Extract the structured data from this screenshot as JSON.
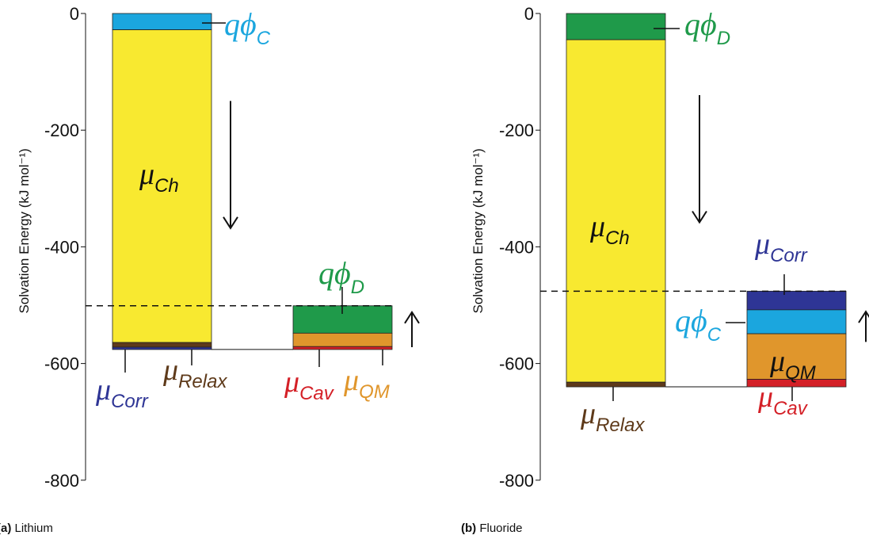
{
  "colors": {
    "chem": "#f8e930",
    "qphi_c": "#1ba6de",
    "qphi_d": "#1f9a4a",
    "relax": "#5e3a1a",
    "corr": "#2e3595",
    "cav": "#d42027",
    "qm": "#e0962c"
  },
  "chart_data": [
    {
      "type": "bar",
      "ylabel": "Solvation Energy (kJ mol⁻¹)",
      "ylim": [
        -800,
        0
      ],
      "yticks": [
        "0",
        "-200",
        "-400",
        "-600",
        "-800"
      ],
      "ytick_values": [
        0,
        -200,
        -400,
        -600,
        -800
      ],
      "caption_tag": "(a)",
      "caption_text": "Lithium",
      "bars": [
        {
          "name": "left",
          "segments": [
            {
              "key": "qphi_c",
              "from": 0,
              "to": -28
            },
            {
              "key": "chem",
              "from": -28,
              "to": -564
            },
            {
              "key": "relax",
              "from": -564,
              "to": -572
            },
            {
              "key": "corr",
              "from": -572,
              "to": -576
            }
          ]
        },
        {
          "name": "right",
          "segments": [
            {
              "key": "qphi_d",
              "from": -501,
              "to": -548
            },
            {
              "key": "qm",
              "from": -548,
              "to": -571
            },
            {
              "key": "cav",
              "from": -571,
              "to": -576
            }
          ]
        }
      ],
      "dashed_level": -501,
      "arrow_down": {
        "from": -150,
        "to": -368
      },
      "arrow_up": {
        "from": -572,
        "to": -512
      },
      "labels": [
        {
          "kind": "qphi",
          "sym": "qϕ",
          "sub": "C",
          "key": "qphi_c"
        },
        {
          "kind": "mu",
          "sym": "μ",
          "sub": "Ch",
          "key": "ink"
        },
        {
          "kind": "qphi",
          "sym": "qϕ",
          "sub": "D",
          "key": "qphi_d"
        },
        {
          "kind": "mu",
          "sym": "μ",
          "sub": "Corr",
          "key": "corr"
        },
        {
          "kind": "mu",
          "sym": "μ",
          "sub": "Relax",
          "key": "relax"
        },
        {
          "kind": "mu",
          "sym": "μ",
          "sub": "Cav",
          "key": "cav"
        },
        {
          "kind": "mu",
          "sym": "μ",
          "sub": "QM",
          "key": "qm"
        }
      ]
    },
    {
      "type": "bar",
      "ylabel": "Solvation Energy (kJ mol⁻¹)",
      "ylim": [
        -800,
        0
      ],
      "yticks": [
        "0",
        "-200",
        "-400",
        "-600",
        "-800"
      ],
      "ytick_values": [
        0,
        -200,
        -400,
        -600,
        -800
      ],
      "caption_tag": "(b)",
      "caption_text": "Fluoride",
      "bars": [
        {
          "name": "left",
          "segments": [
            {
              "key": "qphi_d",
              "from": 0,
              "to": -45
            },
            {
              "key": "chem",
              "from": -45,
              "to": -632
            },
            {
              "key": "relax",
              "from": -632,
              "to": -640
            }
          ]
        },
        {
          "name": "right",
          "segments": [
            {
              "key": "corr",
              "from": -476,
              "to": -508
            },
            {
              "key": "qphi_c",
              "from": -508,
              "to": -549
            },
            {
              "key": "qm",
              "from": -549,
              "to": -627
            },
            {
              "key": "cav",
              "from": -627,
              "to": -640
            }
          ]
        }
      ],
      "dashed_level": -476,
      "arrow_down": {
        "from": -140,
        "to": -358
      },
      "arrow_up": {
        "from": -563,
        "to": -511
      },
      "labels": [
        {
          "kind": "qphi",
          "sym": "qϕ",
          "sub": "D",
          "key": "qphi_d"
        },
        {
          "kind": "mu",
          "sym": "μ",
          "sub": "Ch",
          "key": "ink"
        },
        {
          "kind": "mu",
          "sym": "μ",
          "sub": "Corr",
          "key": "corr"
        },
        {
          "kind": "qphi",
          "sym": "qϕ",
          "sub": "C",
          "key": "qphi_c"
        },
        {
          "kind": "mu",
          "sym": "μ",
          "sub": "QM",
          "key": "ink"
        },
        {
          "kind": "mu",
          "sym": "μ",
          "sub": "Relax",
          "key": "relax"
        },
        {
          "kind": "mu",
          "sym": "μ",
          "sub": "Cav",
          "key": "cav"
        }
      ]
    }
  ]
}
